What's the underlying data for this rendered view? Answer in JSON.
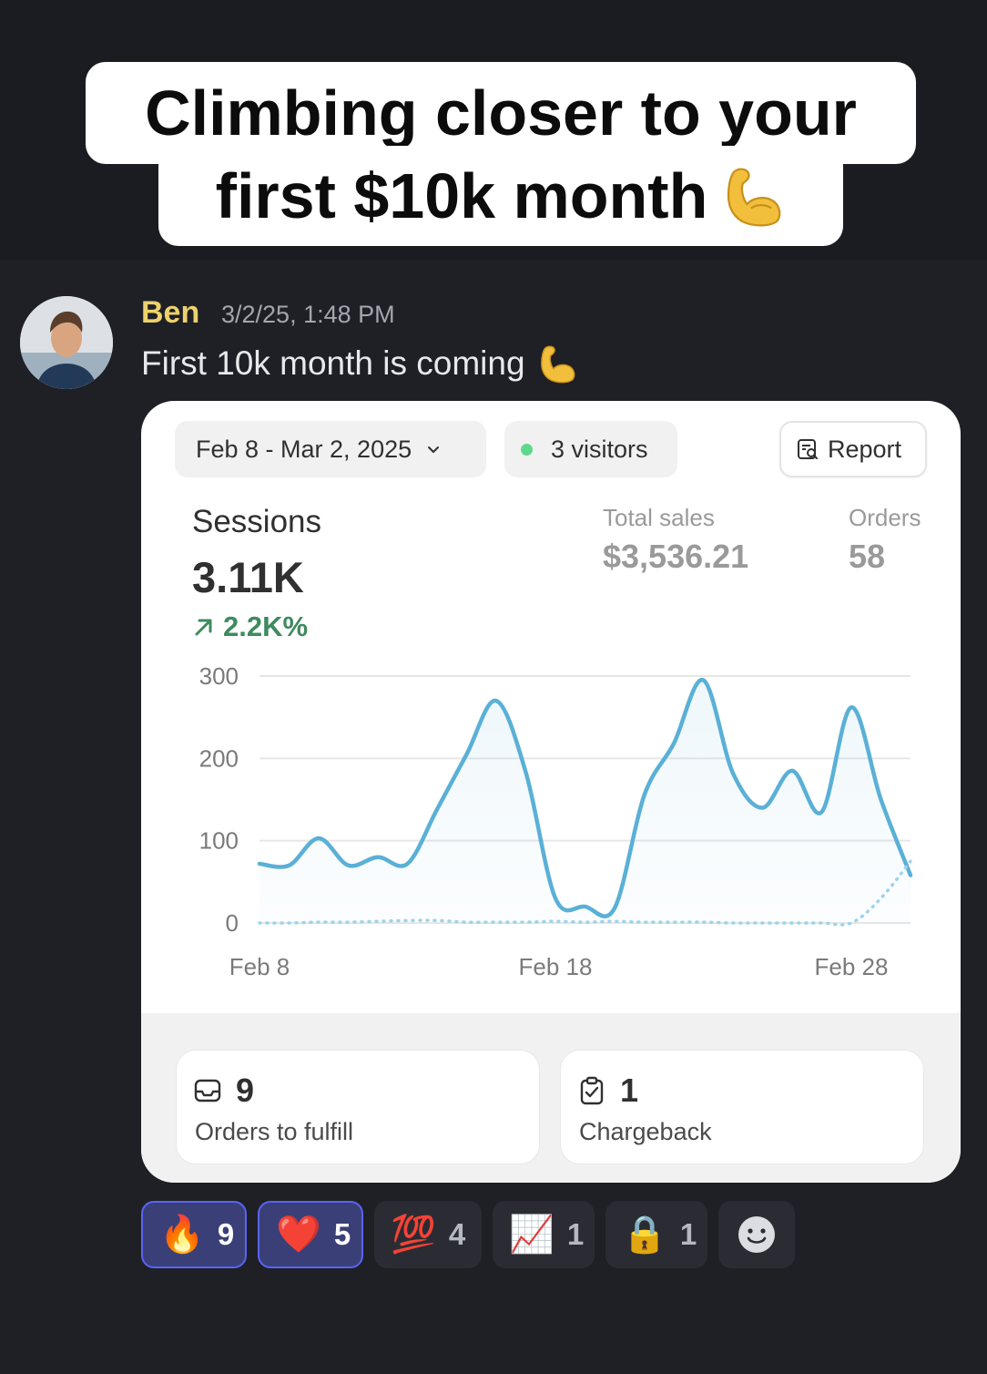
{
  "caption": {
    "line1": "Climbing closer to your",
    "line2": "first $10k month"
  },
  "message": {
    "author": "Ben",
    "timestamp": "3/2/25, 1:48 PM",
    "text": "First 10k month is coming",
    "emoji": "flexed-biceps"
  },
  "dashboard": {
    "date_range": "Feb 8 - Mar 2, 2025",
    "visitors": "3 visitors",
    "report_button": "Report",
    "sessions": {
      "label": "Sessions",
      "value": "3.11K",
      "change": "2.2K%"
    },
    "total_sales": {
      "label": "Total sales",
      "value": "$3,536.21"
    },
    "orders": {
      "label": "Orders",
      "value": "58"
    },
    "tiles": [
      {
        "icon": "inbox-icon",
        "value": "9",
        "label": "Orders to fulfill"
      },
      {
        "icon": "clipboard-check-icon",
        "value": "1",
        "label": "Chargeback"
      }
    ]
  },
  "chart_data": {
    "type": "line",
    "x": [
      "Feb 8",
      "Feb 9",
      "Feb 10",
      "Feb 11",
      "Feb 12",
      "Feb 13",
      "Feb 14",
      "Feb 15",
      "Feb 16",
      "Feb 17",
      "Feb 18",
      "Feb 19",
      "Feb 20",
      "Feb 21",
      "Feb 22",
      "Feb 23",
      "Feb 24",
      "Feb 25",
      "Feb 26",
      "Feb 27",
      "Feb 28",
      "Mar 1",
      "Mar 2"
    ],
    "x_ticks": [
      "Feb 8",
      "Feb 18",
      "Feb 28"
    ],
    "ylim": [
      0,
      300
    ],
    "y_ticks": [
      0,
      100,
      200,
      300
    ],
    "grid": true,
    "series": [
      {
        "style": "solid",
        "color": "#5ab0d6",
        "values": [
          72,
          70,
          103,
          70,
          80,
          72,
          138,
          205,
          270,
          183,
          30,
          20,
          18,
          155,
          218,
          295,
          182,
          140,
          185,
          135,
          262,
          150,
          58
        ]
      },
      {
        "style": "dotted",
        "color": "#9fd3ea",
        "values": [
          0,
          0,
          1,
          1,
          2,
          3,
          3,
          1,
          1,
          1,
          2,
          1,
          2,
          1,
          1,
          1,
          0,
          0,
          0,
          0,
          0,
          30,
          75
        ]
      }
    ]
  },
  "reactions": [
    {
      "emoji": "🔥",
      "name": "fire",
      "count": "9",
      "active": true
    },
    {
      "emoji": "❤️",
      "name": "heart",
      "count": "5",
      "active": true
    },
    {
      "emoji": "💯",
      "name": "hundred-points",
      "count": "4",
      "active": false
    },
    {
      "emoji": "📈",
      "name": "chart-increasing",
      "count": "1",
      "active": false
    },
    {
      "emoji": "🔒",
      "name": "lock",
      "count": "1",
      "active": false
    }
  ],
  "add_reaction_icon": "smiley-add-reaction-icon"
}
